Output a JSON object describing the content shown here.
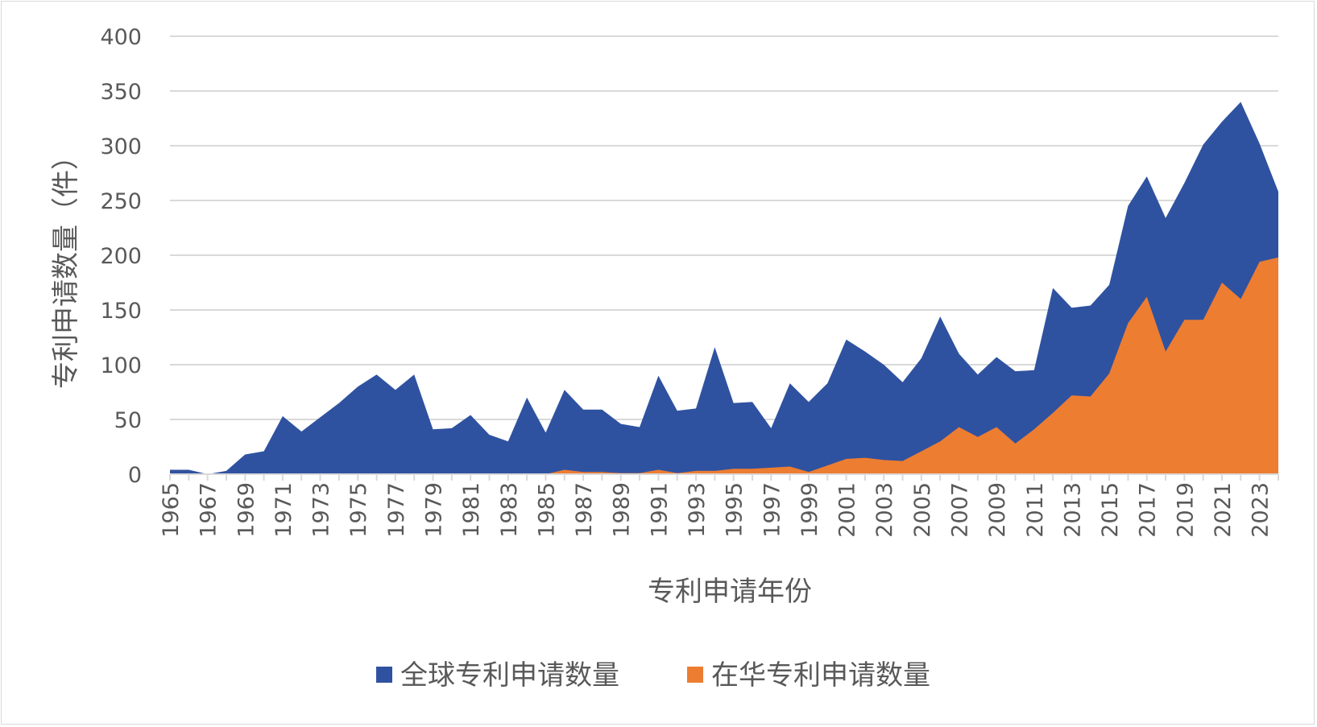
{
  "chart_data": {
    "type": "area",
    "xlabel": "专利申请年份",
    "ylabel": "专利申请数量（件）",
    "ylim": [
      0,
      400
    ],
    "yticks": [
      0,
      50,
      100,
      150,
      200,
      250,
      300,
      350,
      400
    ],
    "x": [
      1965,
      1966,
      1967,
      1968,
      1969,
      1970,
      1971,
      1972,
      1973,
      1974,
      1975,
      1976,
      1977,
      1978,
      1979,
      1980,
      1981,
      1982,
      1983,
      1984,
      1985,
      1986,
      1987,
      1988,
      1989,
      1990,
      1991,
      1992,
      1993,
      1994,
      1995,
      1996,
      1997,
      1998,
      1999,
      2000,
      2001,
      2002,
      2003,
      2004,
      2005,
      2006,
      2007,
      2008,
      2009,
      2010,
      2011,
      2012,
      2013,
      2014,
      2015,
      2016,
      2017,
      2018,
      2019,
      2020,
      2021,
      2022,
      2023,
      2024
    ],
    "xtick_labels": [
      "1965",
      "1967",
      "1969",
      "1971",
      "1973",
      "1975",
      "1977",
      "1979",
      "1981",
      "1983",
      "1985",
      "1987",
      "1989",
      "1991",
      "1993",
      "1995",
      "1997",
      "1999",
      "2001",
      "2003",
      "2005",
      "2007",
      "2009",
      "2011",
      "2013",
      "2015",
      "2017",
      "2019",
      "2021",
      "2023"
    ],
    "grid": true,
    "legend_position": "bottom",
    "series": [
      {
        "name": "全球专利申请数量",
        "color": "#2f52a0",
        "values": [
          4,
          4,
          0,
          3,
          18,
          21,
          53,
          39,
          52,
          65,
          80,
          91,
          77,
          91,
          41,
          42,
          54,
          36,
          30,
          70,
          38,
          77,
          59,
          59,
          46,
          43,
          90,
          58,
          60,
          116,
          65,
          66,
          42,
          83,
          66,
          83,
          123,
          112,
          100,
          84,
          106,
          144,
          110,
          91,
          107,
          94,
          95,
          170,
          152,
          154,
          173,
          245,
          272,
          234,
          266,
          301,
          322,
          340,
          302,
          258
        ]
      },
      {
        "name": "在华专利申请数量",
        "color": "#ed7d31",
        "values": [
          0,
          0,
          0,
          0,
          0,
          0,
          0,
          0,
          0,
          0,
          0,
          0,
          0,
          0,
          0,
          0,
          0,
          0,
          0,
          0,
          0,
          4,
          2,
          2,
          1,
          1,
          4,
          1,
          3,
          3,
          5,
          5,
          6,
          7,
          2,
          8,
          14,
          15,
          13,
          12,
          21,
          30,
          43,
          34,
          43,
          28,
          41,
          56,
          72,
          71,
          92,
          138,
          162,
          112,
          141,
          141,
          175,
          160,
          194,
          198
        ]
      }
    ]
  }
}
